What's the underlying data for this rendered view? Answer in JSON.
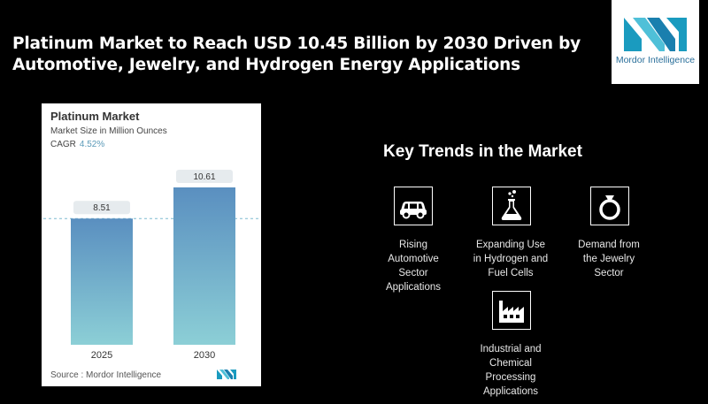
{
  "headline": {
    "line1": "Platinum Market to Reach USD 10.45 Billion by 2030 Driven by",
    "line2": "Automotive, Jewelry, and Hydrogen Energy Applications"
  },
  "logo": {
    "text": "Mordor Intelligence",
    "accent": "#1a9bbf"
  },
  "chart_data": {
    "type": "bar",
    "title": "Platinum Market",
    "subtitle": "Market Size in Million Ounces",
    "cagr_label": "CAGR",
    "cagr_value": "4.52%",
    "categories": [
      "2025",
      "2030"
    ],
    "values": [
      8.51,
      10.61
    ],
    "value_labels": [
      "8.51",
      "10.61"
    ],
    "ylim": [
      0,
      10.61
    ],
    "grid": false,
    "reference_line": "dashed at first bar value",
    "bar_color_top": "#5a8fc0",
    "bar_color_bottom": "#8ccfd6",
    "source": "Source :  Mordor Intelligence"
  },
  "trends": {
    "title": "Key Trends in the Market",
    "items": [
      {
        "icon": "car-icon",
        "lines": [
          "Rising",
          "Automotive",
          "Sector",
          "Applications"
        ]
      },
      {
        "icon": "flask-icon",
        "lines": [
          "Expanding Use",
          "in Hydrogen and",
          "Fuel Cells"
        ]
      },
      {
        "icon": "ring-icon",
        "lines": [
          "Demand from",
          "the Jewelry",
          "Sector"
        ]
      },
      {
        "icon": "factory-icon",
        "lines": [
          "Industrial and",
          "Chemical",
          "Processing",
          "Applications"
        ]
      }
    ]
  }
}
